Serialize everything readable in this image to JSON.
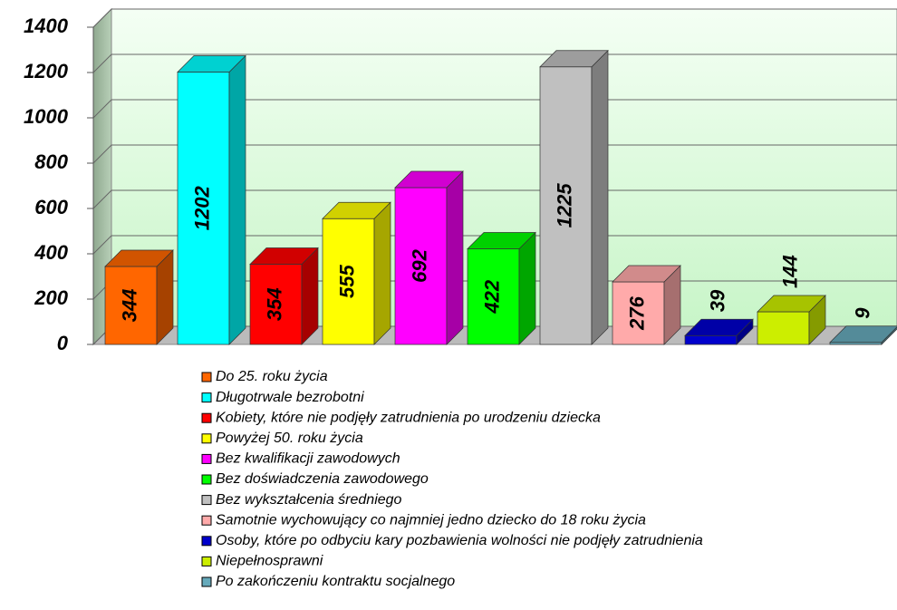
{
  "chart_data": {
    "type": "bar",
    "categories": [
      "Do 25. roku życia",
      "Długotrwale bezrobotni",
      "Kobiety, które nie podjęły zatrudnienia po urodzeniu dziecka",
      "Powyżej 50. roku życia",
      "Bez kwalifikacji zawodowych",
      "Bez doświadczenia zawodowego",
      "Bez wykształcenia średniego",
      "Samotnie wychowujący co najmniej jedno dziecko do 18 roku życia",
      "Osoby, które po odbyciu kary pozbawienia wolności nie podjęły zatrudnienia",
      "Niepełnosprawni",
      "Po zakończeniu kontraktu socjalnego"
    ],
    "values": [
      344,
      1202,
      354,
      555,
      692,
      422,
      1225,
      276,
      39,
      144,
      9
    ],
    "colors": [
      "#ff6600",
      "#00ffff",
      "#ff0000",
      "#ffff00",
      "#ff00ff",
      "#00ff00",
      "#c0c0c0",
      "#ffaaaa",
      "#0000cc",
      "#ccee00",
      "#66aabb"
    ],
    "ylim": [
      0,
      1400
    ],
    "yticks": [
      0,
      200,
      400,
      600,
      800,
      1000,
      1200,
      1400
    ],
    "grid": true
  }
}
